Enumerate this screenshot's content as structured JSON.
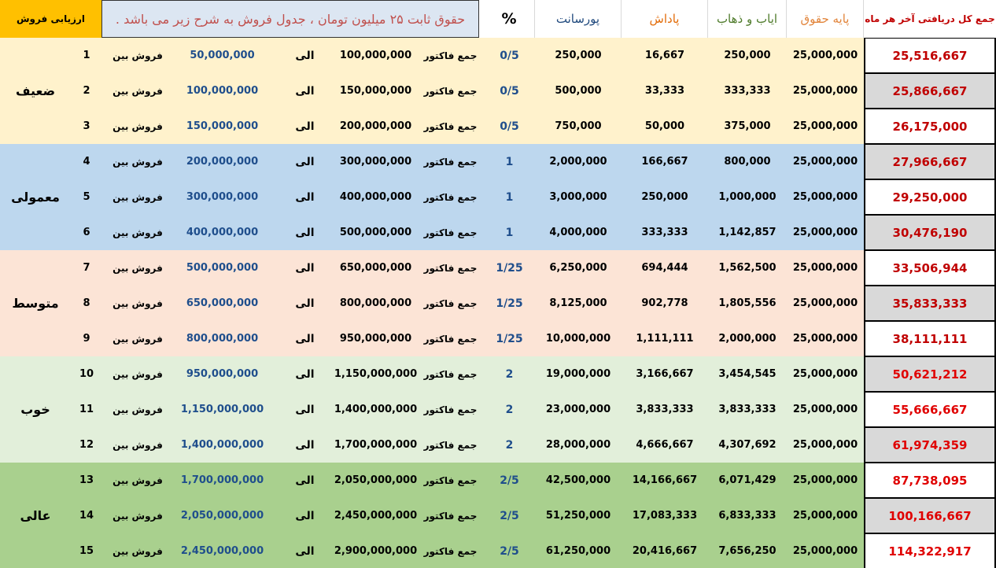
{
  "header": {
    "rating_title": "ارزیابی فروش",
    "note": "حقوق ثابت ۲۵ میلیون تومان ، جدول فروش به شرح زیر می باشد .",
    "percent": "%",
    "commission": "پورسانت",
    "bonus": "پاداش",
    "commute": "ایاب و ذهاب",
    "base_salary": "پایه حقوق",
    "monthly_total": "جمع کل دریافتی آخر هر ماه"
  },
  "labels": {
    "sales_between": "فروش بین",
    "to": "الی",
    "invoice_total": "جمع فاکتور"
  },
  "colors": {
    "weak": "#fff2cc",
    "normal": "#bdd7ee",
    "medium": "#fce4d6",
    "good": "#e2efda",
    "excellent": "#a9d08e",
    "header_rating": "#ffc000",
    "header_note": "#dce6f2",
    "total_text": "#c00000"
  },
  "groups": [
    {
      "label": "ضعیف",
      "color": "#fff2cc"
    },
    {
      "label": "معمولی",
      "color": "#bdd7ee"
    },
    {
      "label": "متوسط",
      "color": "#fce4d6"
    },
    {
      "label": "خوب",
      "color": "#e2efda"
    },
    {
      "label": "عالی",
      "color": "#a9d08e"
    }
  ],
  "rows": [
    {
      "n": "1",
      "from": "50,000,000",
      "to": "100,000,000",
      "pct": "0/5",
      "commission": "250,000",
      "bonus": "16,667",
      "commute": "250,000",
      "base": "25,000,000",
      "total": "25,516,667"
    },
    {
      "n": "2",
      "from": "100,000,000",
      "to": "150,000,000",
      "pct": "0/5",
      "commission": "500,000",
      "bonus": "33,333",
      "commute": "333,333",
      "base": "25,000,000",
      "total": "25,866,667"
    },
    {
      "n": "3",
      "from": "150,000,000",
      "to": "200,000,000",
      "pct": "0/5",
      "commission": "750,000",
      "bonus": "50,000",
      "commute": "375,000",
      "base": "25,000,000",
      "total": "26,175,000"
    },
    {
      "n": "4",
      "from": "200,000,000",
      "to": "300,000,000",
      "pct": "1",
      "commission": "2,000,000",
      "bonus": "166,667",
      "commute": "800,000",
      "base": "25,000,000",
      "total": "27,966,667"
    },
    {
      "n": "5",
      "from": "300,000,000",
      "to": "400,000,000",
      "pct": "1",
      "commission": "3,000,000",
      "bonus": "250,000",
      "commute": "1,000,000",
      "base": "25,000,000",
      "total": "29,250,000"
    },
    {
      "n": "6",
      "from": "400,000,000",
      "to": "500,000,000",
      "pct": "1",
      "commission": "4,000,000",
      "bonus": "333,333",
      "commute": "1,142,857",
      "base": "25,000,000",
      "total": "30,476,190"
    },
    {
      "n": "7",
      "from": "500,000,000",
      "to": "650,000,000",
      "pct": "1/25",
      "commission": "6,250,000",
      "bonus": "694,444",
      "commute": "1,562,500",
      "base": "25,000,000",
      "total": "33,506,944"
    },
    {
      "n": "8",
      "from": "650,000,000",
      "to": "800,000,000",
      "pct": "1/25",
      "commission": "8,125,000",
      "bonus": "902,778",
      "commute": "1,805,556",
      "base": "25,000,000",
      "total": "35,833,333"
    },
    {
      "n": "9",
      "from": "800,000,000",
      "to": "950,000,000",
      "pct": "1/25",
      "commission": "10,000,000",
      "bonus": "1,111,111",
      "commute": "2,000,000",
      "base": "25,000,000",
      "total": "38,111,111"
    },
    {
      "n": "10",
      "from": "950,000,000",
      "to": "1,150,000,000",
      "pct": "2",
      "commission": "19,000,000",
      "bonus": "3,166,667",
      "commute": "3,454,545",
      "base": "25,000,000",
      "total": "50,621,212"
    },
    {
      "n": "11",
      "from": "1,150,000,000",
      "to": "1,400,000,000",
      "pct": "2",
      "commission": "23,000,000",
      "bonus": "3,833,333",
      "commute": "3,833,333",
      "base": "25,000,000",
      "total": "55,666,667"
    },
    {
      "n": "12",
      "from": "1,400,000,000",
      "to": "1,700,000,000",
      "pct": "2",
      "commission": "28,000,000",
      "bonus": "4,666,667",
      "commute": "4,307,692",
      "base": "25,000,000",
      "total": "61,974,359"
    },
    {
      "n": "13",
      "from": "1,700,000,000",
      "to": "2,050,000,000",
      "pct": "2/5",
      "commission": "42,500,000",
      "bonus": "14,166,667",
      "commute": "6,071,429",
      "base": "25,000,000",
      "total": "87,738,095"
    },
    {
      "n": "14",
      "from": "2,050,000,000",
      "to": "2,450,000,000",
      "pct": "2/5",
      "commission": "51,250,000",
      "bonus": "17,083,333",
      "commute": "6,833,333",
      "base": "25,000,000",
      "total": "100,166,667"
    },
    {
      "n": "15",
      "from": "2,450,000,000",
      "to": "2,900,000,000",
      "pct": "2/5",
      "commission": "61,250,000",
      "bonus": "20,416,667",
      "commute": "7,656,250",
      "base": "25,000,000",
      "total": "114,322,917"
    }
  ]
}
